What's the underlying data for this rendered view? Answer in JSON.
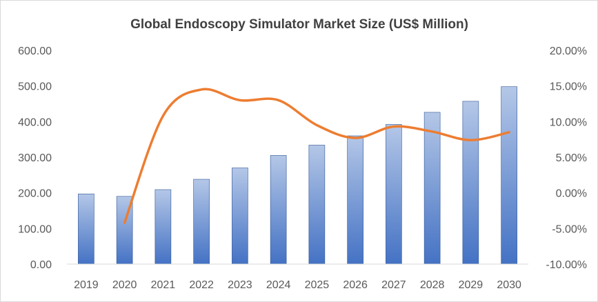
{
  "chart_data": {
    "type": "bar",
    "title": "Global Endoscopy Simulator Market Size (US$ Million)",
    "categories": [
      "2019",
      "2020",
      "2021",
      "2022",
      "2023",
      "2024",
      "2025",
      "2026",
      "2027",
      "2028",
      "2029",
      "2030"
    ],
    "series": [
      {
        "type": "bar",
        "axis": "left",
        "values": [
          197,
          190,
          209,
          238,
          270,
          305,
          334,
          360,
          392,
          426,
          457,
          498
        ]
      },
      {
        "type": "line",
        "axis": "right",
        "smooth": true,
        "values": [
          null,
          -4.2,
          10.8,
          14.5,
          13.0,
          13.0,
          9.5,
          7.7,
          9.3,
          8.6,
          7.4,
          8.5
        ]
      }
    ],
    "ylim": [
      0,
      600
    ],
    "y_ticks": [
      "0.00",
      "100.00",
      "200.00",
      "300.00",
      "400.00",
      "500.00",
      "600.00"
    ],
    "y2lim": [
      -10,
      20
    ],
    "y2_ticks": [
      "-10.00%",
      "-5.00%",
      "0.00%",
      "5.00%",
      "10.00%",
      "15.00%",
      "20.00%"
    ],
    "grid": false,
    "colors": {
      "bar_top": "#b4c7e7",
      "bar_bottom": "#4472c4",
      "bar_stroke": "#2f5597",
      "line": "#ed7d31",
      "axis": "#d9d9d9"
    }
  }
}
